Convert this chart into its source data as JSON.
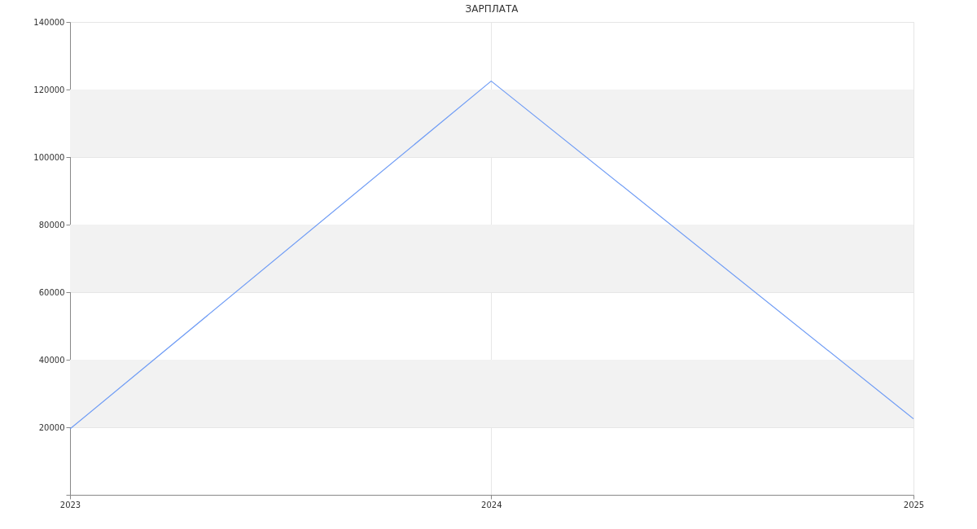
{
  "chart_data": {
    "type": "line",
    "title": "ЗАРПЛАТА",
    "x": [
      "2023",
      "2024",
      "2025"
    ],
    "series": [
      {
        "color": "#6f9cf5",
        "values": [
          19500,
          122500,
          22500
        ]
      }
    ],
    "xlim": [
      "2023",
      "2025"
    ],
    "xticks": [
      "2023",
      "2024",
      "2025"
    ],
    "ylim": [
      0,
      140000
    ],
    "yticks": [
      {
        "value": 0,
        "label": null
      },
      20000,
      40000,
      60000,
      80000,
      100000,
      120000,
      140000
    ],
    "bands": [
      {
        "axis": "y",
        "from": 20000,
        "to": 40000,
        "color": "#f2f2f2"
      },
      {
        "axis": "y",
        "from": 60000,
        "to": 80000,
        "color": "#f2f2f2"
      },
      {
        "axis": "y",
        "from": 100000,
        "to": 120000,
        "color": "#f2f2f2"
      }
    ],
    "grid": true,
    "marker": "none",
    "line_style": "solid"
  }
}
